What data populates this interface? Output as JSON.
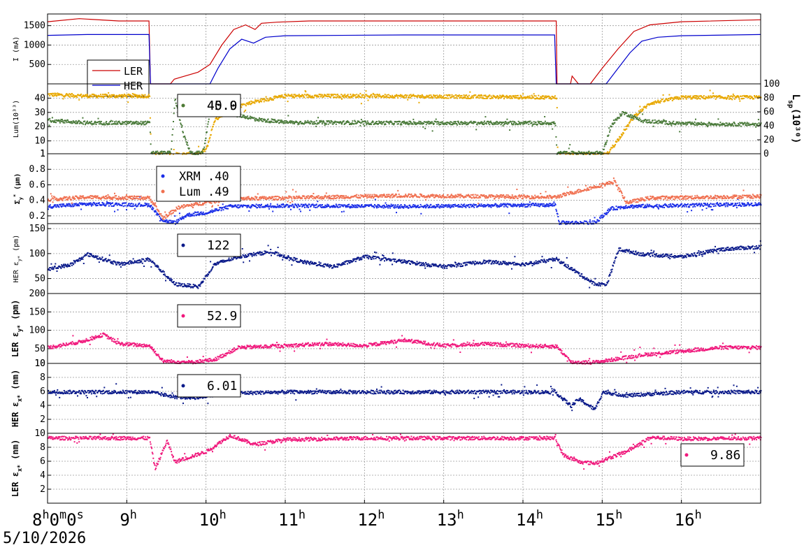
{
  "chart_data": [
    {
      "type": "line",
      "id": "current",
      "ylabel": "I (mA)",
      "ylim": [
        0,
        1800
      ],
      "yticks": [
        500,
        1000,
        1500
      ],
      "series": [
        {
          "name": "LER",
          "color": "#cc0000",
          "points": [
            [
              8.0,
              1600
            ],
            [
              8.4,
              1680
            ],
            [
              8.9,
              1620
            ],
            [
              9.28,
              1620
            ],
            [
              9.3,
              0
            ],
            [
              9.55,
              0
            ],
            [
              9.6,
              120
            ],
            [
              9.9,
              300
            ],
            [
              10.05,
              500
            ],
            [
              10.2,
              1000
            ],
            [
              10.35,
              1400
            ],
            [
              10.5,
              1520
            ],
            [
              10.62,
              1400
            ],
            [
              10.7,
              1560
            ],
            [
              10.9,
              1590
            ],
            [
              11.3,
              1620
            ],
            [
              12.5,
              1620
            ],
            [
              14.42,
              1620
            ],
            [
              14.43,
              0
            ],
            [
              14.6,
              0
            ],
            [
              14.62,
              200
            ],
            [
              14.7,
              0
            ],
            [
              14.85,
              0
            ],
            [
              15.0,
              400
            ],
            [
              15.2,
              900
            ],
            [
              15.4,
              1350
            ],
            [
              15.6,
              1520
            ],
            [
              16.0,
              1600
            ],
            [
              17.0,
              1650
            ]
          ]
        },
        {
          "name": "HER",
          "color": "#0000cc",
          "points": [
            [
              8.0,
              1250
            ],
            [
              8.5,
              1270
            ],
            [
              9.28,
              1270
            ],
            [
              9.3,
              0
            ],
            [
              10.05,
              0
            ],
            [
              10.15,
              400
            ],
            [
              10.3,
              900
            ],
            [
              10.45,
              1150
            ],
            [
              10.6,
              1050
            ],
            [
              10.75,
              1200
            ],
            [
              11.0,
              1240
            ],
            [
              12.5,
              1260
            ],
            [
              14.4,
              1260
            ],
            [
              14.42,
              0
            ],
            [
              15.05,
              0
            ],
            [
              15.2,
              400
            ],
            [
              15.35,
              800
            ],
            [
              15.5,
              1100
            ],
            [
              15.7,
              1200
            ],
            [
              16.0,
              1240
            ],
            [
              17.0,
              1270
            ]
          ]
        }
      ],
      "legend": [
        "LER",
        "HER"
      ],
      "legend_position": "left"
    },
    {
      "type": "scatter",
      "id": "luminosity",
      "ylabel": "Lum(10³³)",
      "ylim": [
        1,
        50
      ],
      "yticks": [
        1,
        10,
        20,
        30,
        40
      ],
      "ylabel_right": "L",
      "ylabel_right_sub": "sp",
      "ylabel_right_tail": "(10³⁰)",
      "yticks_right": [
        0,
        20,
        40,
        60,
        80,
        100
      ],
      "ylim_right": [
        0,
        100
      ],
      "series": [
        {
          "name": "Lum",
          "color": "#e8a800",
          "points": [
            [
              8.0,
              43
            ],
            [
              8.5,
              42
            ],
            [
              9.28,
              42
            ],
            [
              9.3,
              1
            ],
            [
              9.9,
              1
            ],
            [
              10.0,
              5
            ],
            [
              10.1,
              25
            ],
            [
              10.3,
              33
            ],
            [
              10.6,
              38
            ],
            [
              11.0,
              42
            ],
            [
              12.0,
              42
            ],
            [
              14.42,
              41
            ],
            [
              14.43,
              1
            ],
            [
              15.05,
              1
            ],
            [
              15.2,
              12
            ],
            [
              15.4,
              28
            ],
            [
              15.6,
              37
            ],
            [
              16.0,
              41
            ],
            [
              17.0,
              41
            ]
          ]
        },
        {
          "name": "Lsp",
          "color": "#4a7a3a",
          "axis": "right",
          "points": [
            [
              8.0,
              49
            ],
            [
              8.5,
              45
            ],
            [
              9.28,
              45
            ],
            [
              9.3,
              2
            ],
            [
              9.55,
              2
            ],
            [
              9.6,
              80
            ],
            [
              9.7,
              30
            ],
            [
              9.8,
              2
            ],
            [
              9.95,
              2
            ],
            [
              10.05,
              62
            ],
            [
              10.4,
              56
            ],
            [
              10.7,
              49
            ],
            [
              11.0,
              46
            ],
            [
              12.5,
              45
            ],
            [
              14.4,
              45
            ],
            [
              14.42,
              2
            ],
            [
              15.0,
              2
            ],
            [
              15.1,
              40
            ],
            [
              15.25,
              60
            ],
            [
              15.5,
              48
            ],
            [
              16.0,
              44
            ],
            [
              17.0,
              43
            ]
          ]
        }
      ],
      "legend": [
        {
          "color": "#e8a800",
          "text": "40.9"
        },
        {
          "color": "#4a7a3a",
          "text": "45.0"
        }
      ]
    },
    {
      "type": "scatter",
      "id": "sigma-y",
      "ylabel": "Σ",
      "ylabel_sup": "*",
      "ylabel_sub": "y",
      "ylabel_tail": " (µm)",
      "ylim": [
        0.1,
        1.0
      ],
      "yticks": [
        0.2,
        0.4,
        0.6,
        0.8,
        1
      ],
      "series": [
        {
          "name": "XRM",
          "color": "#1a2ee8",
          "points": [
            [
              8.0,
              0.33
            ],
            [
              8.5,
              0.36
            ],
            [
              9.28,
              0.35
            ],
            [
              9.45,
              0.15
            ],
            [
              9.6,
              0.12
            ],
            [
              9.75,
              0.22
            ],
            [
              10.0,
              0.25
            ],
            [
              10.3,
              0.33
            ],
            [
              11.0,
              0.34
            ],
            [
              12.5,
              0.33
            ],
            [
              14.4,
              0.35
            ],
            [
              14.45,
              0.12
            ],
            [
              14.9,
              0.12
            ],
            [
              15.1,
              0.3
            ],
            [
              15.3,
              0.33
            ],
            [
              17.0,
              0.36
            ]
          ]
        },
        {
          "name": "Lum",
          "color": "#f07050",
          "points": [
            [
              8.0,
              0.42
            ],
            [
              8.5,
              0.45
            ],
            [
              9.28,
              0.44
            ],
            [
              9.45,
              0.18
            ],
            [
              9.65,
              0.32
            ],
            [
              10.0,
              0.38
            ],
            [
              10.3,
              0.43
            ],
            [
              11.0,
              0.44
            ],
            [
              12.5,
              0.47
            ],
            [
              14.4,
              0.45
            ],
            [
              15.15,
              0.65
            ],
            [
              15.3,
              0.38
            ],
            [
              15.6,
              0.44
            ],
            [
              17.0,
              0.46
            ]
          ]
        }
      ],
      "legend": [
        {
          "color": "#1a2ee8",
          "text": "XRM  .40"
        },
        {
          "color": "#f07050",
          "text": "Lum  .49"
        }
      ]
    },
    {
      "type": "scatter",
      "id": "her-emit-y",
      "ylabel": "HER ε",
      "ylabel_sub": "y*",
      "ylabel_tail": " (pm)",
      "ylim": [
        20,
        160
      ],
      "yticks": [
        50,
        100,
        150
      ],
      "series": [
        {
          "name": "HER ey",
          "color": "#0a1a8a",
          "points": [
            [
              8.0,
              70
            ],
            [
              8.3,
              80
            ],
            [
              8.5,
              100
            ],
            [
              8.9,
              80
            ],
            [
              9.28,
              90
            ],
            [
              9.6,
              40
            ],
            [
              9.9,
              35
            ],
            [
              10.1,
              80
            ],
            [
              10.4,
              95
            ],
            [
              10.8,
              105
            ],
            [
              11.2,
              85
            ],
            [
              11.6,
              75
            ],
            [
              12.0,
              95
            ],
            [
              12.5,
              85
            ],
            [
              13.0,
              75
            ],
            [
              13.5,
              85
            ],
            [
              14.0,
              80
            ],
            [
              14.42,
              90
            ],
            [
              14.9,
              40
            ],
            [
              15.05,
              40
            ],
            [
              15.2,
              110
            ],
            [
              15.5,
              100
            ],
            [
              16.0,
              95
            ],
            [
              16.5,
              110
            ],
            [
              17.0,
              115
            ]
          ]
        }
      ],
      "legend": [
        {
          "color": "#0a1a8a",
          "text": "122"
        }
      ]
    },
    {
      "type": "scatter",
      "id": "ler-emit-y",
      "ylabel": "LER ε",
      "ylabel_sub": "y*",
      "ylabel_tail": " (pm)",
      "ylim": [
        10,
        200
      ],
      "yticks": [
        10,
        50,
        100,
        150,
        200
      ],
      "series": [
        {
          "name": "LER ey",
          "color": "#f0187c",
          "points": [
            [
              8.0,
              55
            ],
            [
              8.4,
              70
            ],
            [
              8.7,
              90
            ],
            [
              8.9,
              65
            ],
            [
              9.28,
              60
            ],
            [
              9.45,
              18
            ],
            [
              9.8,
              15
            ],
            [
              10.1,
              22
            ],
            [
              10.4,
              55
            ],
            [
              11.0,
              60
            ],
            [
              11.5,
              65
            ],
            [
              12.0,
              60
            ],
            [
              12.5,
              75
            ],
            [
              13.0,
              60
            ],
            [
              13.5,
              65
            ],
            [
              14.0,
              60
            ],
            [
              14.42,
              58
            ],
            [
              14.6,
              15
            ],
            [
              14.9,
              15
            ],
            [
              15.0,
              18
            ],
            [
              15.5,
              35
            ],
            [
              16.0,
              45
            ],
            [
              16.5,
              55
            ],
            [
              17.0,
              55
            ]
          ]
        }
      ],
      "legend": [
        {
          "color": "#f0187c",
          "text": "52.9"
        }
      ]
    },
    {
      "type": "scatter",
      "id": "her-emit-x",
      "ylabel": "HER ε",
      "ylabel_sub": "x*",
      "ylabel_tail": " (nm)",
      "ylim": [
        0,
        10
      ],
      "yticks": [
        2,
        4,
        6,
        8,
        10
      ],
      "series": [
        {
          "name": "HER ex",
          "color": "#0a1a8a",
          "points": [
            [
              8.0,
              6
            ],
            [
              9.28,
              6
            ],
            [
              9.6,
              5.3
            ],
            [
              9.9,
              5.2
            ],
            [
              10.2,
              5.8
            ],
            [
              11.0,
              6
            ],
            [
              14.4,
              6
            ],
            [
              14.6,
              4
            ],
            [
              14.7,
              5
            ],
            [
              14.9,
              3.5
            ],
            [
              15.0,
              6
            ],
            [
              15.3,
              5.5
            ],
            [
              16.0,
              6
            ],
            [
              17.0,
              6
            ]
          ]
        }
      ],
      "legend": [
        {
          "color": "#0a1a8a",
          "text": "6.01"
        }
      ]
    },
    {
      "type": "scatter",
      "id": "ler-emit-x",
      "ylabel": "LER ε",
      "ylabel_sub": "x*",
      "ylabel_tail": " (nm)",
      "ylim": [
        0,
        10
      ],
      "yticks": [
        2,
        4,
        6,
        8,
        10
      ],
      "series": [
        {
          "name": "LER ex",
          "color": "#f0187c",
          "points": [
            [
              8.0,
              9.4
            ],
            [
              9.28,
              9.4
            ],
            [
              9.35,
              5
            ],
            [
              9.5,
              9
            ],
            [
              9.6,
              6
            ],
            [
              10.0,
              7.5
            ],
            [
              10.3,
              9.8
            ],
            [
              10.6,
              8.5
            ],
            [
              11.0,
              9.2
            ],
            [
              12.0,
              9.4
            ],
            [
              14.4,
              9.4
            ],
            [
              14.5,
              7
            ],
            [
              14.7,
              6
            ],
            [
              14.9,
              5.8
            ],
            [
              15.3,
              7.5
            ],
            [
              15.6,
              9.5
            ],
            [
              16.0,
              9.3
            ],
            [
              17.0,
              9.4
            ]
          ]
        }
      ],
      "legend": [
        {
          "color": "#f0187c",
          "text": "9.86"
        }
      ]
    }
  ],
  "x_axis": {
    "xlim": [
      8.0,
      17.0
    ],
    "ticks": [
      {
        "x": 8,
        "label": "8",
        "sup": "h",
        "tail": "0",
        "sup2": "m",
        "tail2": "0",
        "sup3": "s"
      },
      {
        "x": 9,
        "label": "9",
        "sup": "h"
      },
      {
        "x": 10,
        "label": "10",
        "sup": "h"
      },
      {
        "x": 11,
        "label": "11",
        "sup": "h"
      },
      {
        "x": 12,
        "label": "12",
        "sup": "h"
      },
      {
        "x": 13,
        "label": "13",
        "sup": "h"
      },
      {
        "x": 14,
        "label": "14",
        "sup": "h"
      },
      {
        "x": 15,
        "label": "15",
        "sup": "h"
      },
      {
        "x": 16,
        "label": "16",
        "sup": "h"
      }
    ],
    "date": "5/10/2026"
  },
  "grid": true
}
